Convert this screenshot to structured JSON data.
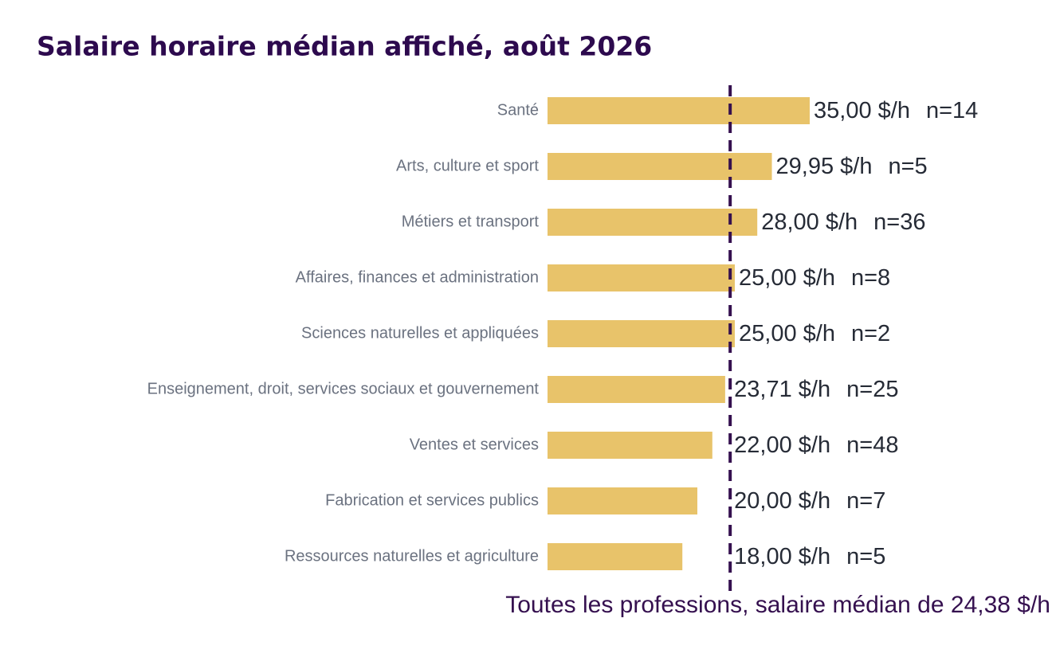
{
  "chart_data": {
    "type": "bar",
    "orientation": "horizontal",
    "title": "Salaire horaire médian affiché, août 2026",
    "categories": [
      "Santé",
      "Arts, culture et sport",
      "Métiers et transport",
      "Affaires, finances et administration",
      "Sciences naturelles et appliquées",
      "Enseignement, droit, services sociaux et gouvernement",
      "Ventes et services",
      "Fabrication et services publics",
      "Ressources naturelles et agriculture"
    ],
    "values": [
      35,
      29.95,
      28,
      25,
      25,
      23.71,
      22,
      20,
      18
    ],
    "value_labels": [
      "35,00 $/h",
      "29,95 $/h",
      "28,00 $/h",
      "25,00 $/h",
      "25,00 $/h",
      "23,71 $/h",
      "22,00 $/h",
      "20,00 $/h",
      "18,00 $/h"
    ],
    "counts": [
      14,
      5,
      36,
      8,
      2,
      25,
      48,
      7,
      5
    ],
    "count_labels": [
      "n=14",
      "n=5",
      "n=36",
      "n=8",
      "n=2",
      "n=25",
      "n=48",
      "n=7",
      "n=5"
    ],
    "color": "#e8c36a",
    "reference": {
      "value": 24.38,
      "label": "Toutes les professions, salaire médian de 24,38 $/h",
      "color": "#35104f"
    }
  }
}
